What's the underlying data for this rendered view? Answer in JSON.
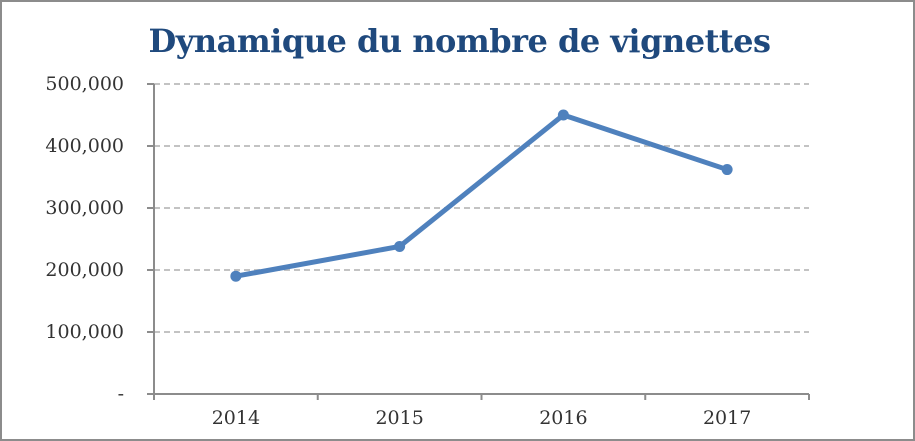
{
  "window": {
    "background": "#FFFFFF",
    "border_color": "#8C8C8C"
  },
  "chart_data": {
    "type": "line",
    "title": "Dynamique du nombre de vignettes",
    "categories": [
      "2014",
      "2015",
      "2016",
      "2017"
    ],
    "values": [
      190000,
      238000,
      450000,
      362000
    ],
    "xlabel": "",
    "ylabel": "",
    "ylim": [
      0,
      500000
    ],
    "ytick_interval": 100000,
    "ytick_labels": [
      "-",
      "100,000",
      "200,000",
      "300,000",
      "400,000",
      "500,000"
    ],
    "grid": "horizontal-dashed",
    "legend": "none",
    "marker": "circle",
    "colors": {
      "line": "#4F81BD",
      "title": "#1F497D",
      "axis": "#8C8C8C",
      "gridline": "#C3C3C3",
      "tick_label": "#333333"
    }
  }
}
